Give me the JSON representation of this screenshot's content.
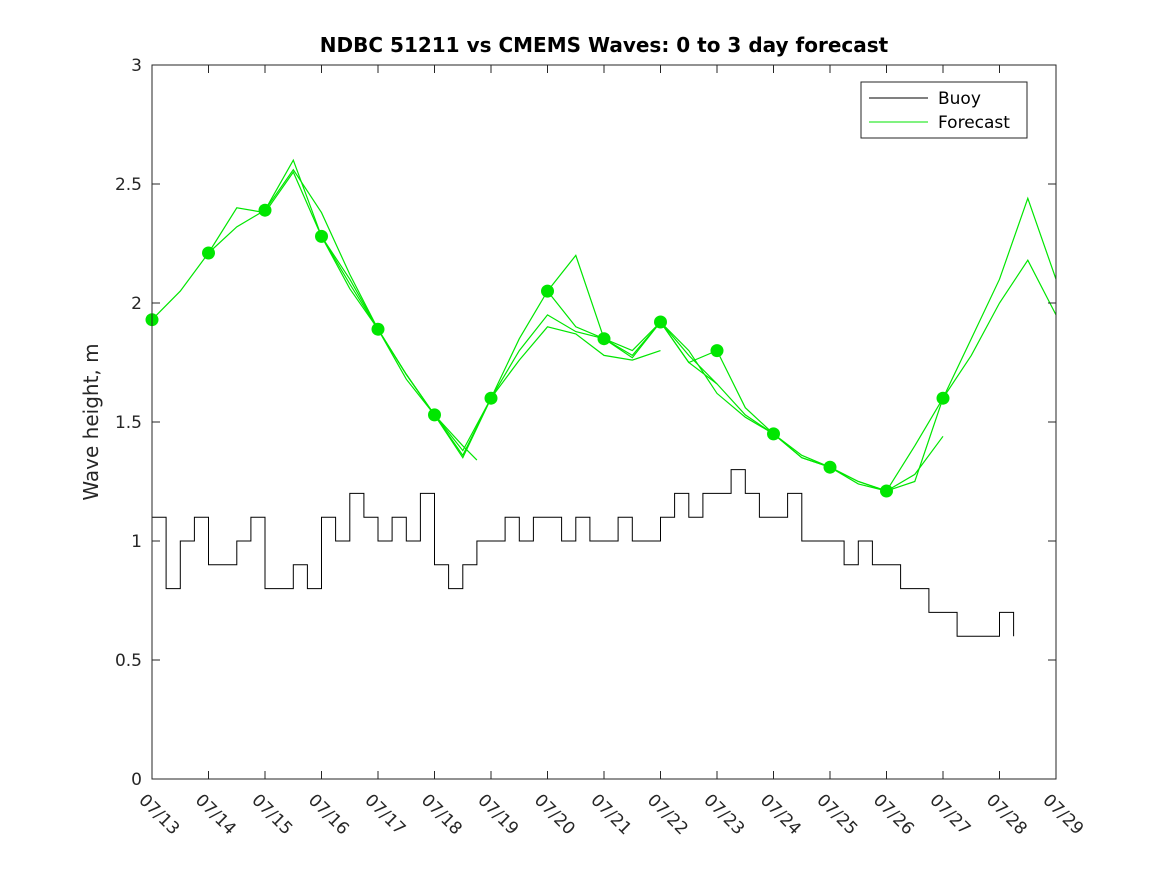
{
  "chart_data": {
    "type": "line",
    "title": "NDBC 51211 vs CMEMS Waves: 0 to 3 day forecast",
    "ylabel": "Wave height, m",
    "xlabel": "",
    "x_range": [
      "07/13",
      "07/29"
    ],
    "ylim": [
      0,
      3
    ],
    "yticks": [
      0,
      0.5,
      1,
      1.5,
      2,
      2.5,
      3
    ],
    "xtick_labels": [
      "07/13",
      "07/14",
      "07/15",
      "07/16",
      "07/17",
      "07/18",
      "07/19",
      "07/20",
      "07/21",
      "07/22",
      "07/23",
      "07/24",
      "07/25",
      "07/26",
      "07/27",
      "07/28",
      "07/29"
    ],
    "grid": false,
    "legend": {
      "placement": "top-right",
      "entries": [
        "Buoy",
        "Forecast"
      ]
    },
    "colors": {
      "buoy": "#000000",
      "forecast": "#00e600",
      "axis": "#262626"
    },
    "buoy": {
      "name": "Buoy",
      "x": [
        "07/13 00:00",
        "07/13 06:00",
        "07/13 12:00",
        "07/13 18:00",
        "07/14 00:00",
        "07/14 06:00",
        "07/14 12:00",
        "07/14 18:00",
        "07/15 00:00",
        "07/15 06:00",
        "07/15 12:00",
        "07/15 18:00",
        "07/16 00:00",
        "07/16 06:00",
        "07/16 12:00",
        "07/16 18:00",
        "07/17 00:00",
        "07/17 06:00",
        "07/17 12:00",
        "07/17 18:00",
        "07/18 00:00",
        "07/18 06:00",
        "07/18 12:00",
        "07/18 18:00",
        "07/19 00:00",
        "07/19 06:00",
        "07/19 12:00",
        "07/19 18:00",
        "07/20 00:00",
        "07/20 06:00",
        "07/20 12:00",
        "07/20 18:00",
        "07/21 00:00",
        "07/21 06:00",
        "07/21 12:00",
        "07/21 18:00",
        "07/22 00:00",
        "07/22 06:00",
        "07/22 12:00",
        "07/22 18:00",
        "07/23 00:00",
        "07/23 06:00",
        "07/23 12:00",
        "07/23 18:00",
        "07/24 00:00",
        "07/24 06:00",
        "07/24 12:00",
        "07/24 18:00",
        "07/25 00:00",
        "07/25 06:00",
        "07/25 12:00",
        "07/25 18:00",
        "07/26 00:00",
        "07/26 06:00",
        "07/26 12:00",
        "07/26 18:00",
        "07/27 00:00",
        "07/27 06:00",
        "07/27 12:00",
        "07/27 18:00",
        "07/28 00:00",
        "07/28 06:00"
      ],
      "y": [
        1.1,
        0.8,
        1.0,
        1.1,
        0.9,
        0.9,
        1.0,
        1.1,
        0.8,
        0.8,
        0.9,
        0.8,
        1.1,
        1.0,
        1.2,
        1.1,
        1.0,
        1.1,
        1.0,
        1.2,
        0.9,
        0.8,
        0.9,
        1.0,
        1.0,
        1.1,
        1.0,
        1.1,
        1.1,
        1.0,
        1.1,
        1.0,
        1.0,
        1.1,
        1.0,
        1.0,
        1.1,
        1.2,
        1.1,
        1.2,
        1.2,
        1.3,
        1.2,
        1.1,
        1.1,
        1.2,
        1.0,
        1.0,
        1.0,
        0.9,
        1.0,
        0.9,
        0.9,
        0.8,
        0.8,
        0.7,
        0.7,
        0.6,
        0.6,
        0.6,
        0.7,
        0.6
      ]
    },
    "series": [
      {
        "name": "Forecast",
        "x": [
          "07/13 00:00",
          "07/13 12:00",
          "07/14 00:00",
          "07/14 12:00",
          "07/15 00:00",
          "07/15 12:00",
          "07/16 00:00",
          "07/16 12:00",
          "07/17 00:00",
          "07/17 12:00",
          "07/18 00:00",
          "07/18 12:00",
          "07/18 18:00"
        ],
        "y": [
          1.93,
          2.05,
          2.21,
          2.4,
          2.38,
          2.55,
          2.28,
          2.1,
          1.89,
          1.7,
          1.53,
          1.4,
          1.34
        ]
      },
      {
        "name": "Forecast",
        "x": [
          "07/14 00:00",
          "07/14 12:00",
          "07/15 00:00",
          "07/15 12:00",
          "07/16 00:00",
          "07/16 12:00",
          "07/17 00:00",
          "07/17 12:00",
          "07/18 00:00",
          "07/18 12:00",
          "07/19 00:00",
          "07/19 12:00",
          "07/20 00:00",
          "07/20 12:00",
          "07/21 00:00",
          "07/21 12:00",
          "07/22 00:00"
        ],
        "y": [
          2.21,
          2.32,
          2.39,
          2.56,
          2.38,
          2.12,
          1.89,
          1.7,
          1.53,
          1.38,
          1.6,
          1.76,
          1.9,
          1.87,
          1.78,
          1.76,
          1.8
        ]
      },
      {
        "name": "Forecast",
        "x": [
          "07/15 00:00",
          "07/15 12:00",
          "07/16 00:00",
          "07/16 12:00",
          "07/17 00:00",
          "07/17 12:00",
          "07/18 00:00",
          "07/18 12:00",
          "07/19 00:00",
          "07/19 12:00",
          "07/20 00:00",
          "07/20 12:00",
          "07/21 00:00",
          "07/21 12:00",
          "07/22 00:00",
          "07/22 12:00",
          "07/23 00:00"
        ],
        "y": [
          2.39,
          2.6,
          2.28,
          2.08,
          1.89,
          1.68,
          1.53,
          1.36,
          1.6,
          1.85,
          2.05,
          2.2,
          1.85,
          1.8,
          1.92,
          1.75,
          1.66
        ]
      },
      {
        "name": "Forecast",
        "x": [
          "07/16 00:00",
          "07/16 12:00",
          "07/17 00:00",
          "07/17 12:00",
          "07/18 00:00",
          "07/18 12:00",
          "07/19 00:00",
          "07/19 12:00",
          "07/20 00:00",
          "07/20 12:00",
          "07/21 00:00",
          "07/21 12:00",
          "07/22 00:00",
          "07/22 12:00",
          "07/23 00:00",
          "07/23 12:00",
          "07/24 00:00"
        ],
        "y": [
          2.28,
          2.06,
          1.89,
          1.7,
          1.53,
          1.35,
          1.6,
          1.8,
          1.95,
          1.88,
          1.85,
          1.78,
          1.92,
          1.8,
          1.62,
          1.52,
          1.45
        ]
      },
      {
        "name": "Forecast",
        "x": [
          "07/20 00:00",
          "07/20 12:00",
          "07/21 00:00",
          "07/21 12:00",
          "07/22 00:00",
          "07/22 12:00",
          "07/23 00:00",
          "07/23 12:00",
          "07/24 00:00",
          "07/24 12:00",
          "07/25 00:00",
          "07/25 12:00",
          "07/26 00:00",
          "07/26 12:00",
          "07/27 00:00"
        ],
        "y": [
          2.05,
          1.9,
          1.85,
          1.77,
          1.92,
          1.78,
          1.66,
          1.53,
          1.45,
          1.35,
          1.31,
          1.25,
          1.21,
          1.28,
          1.44
        ]
      },
      {
        "name": "Forecast",
        "x": [
          "07/22 00:00",
          "07/22 12:00",
          "07/23 00:00",
          "07/23 12:00",
          "07/24 00:00",
          "07/24 12:00",
          "07/25 00:00",
          "07/25 12:00",
          "07/26 00:00",
          "07/26 12:00",
          "07/27 00:00",
          "07/27 12:00",
          "07/28 00:00",
          "07/28 12:00",
          "07/29 00:00"
        ],
        "y": [
          1.92,
          1.75,
          1.8,
          1.56,
          1.45,
          1.35,
          1.31,
          1.25,
          1.21,
          1.4,
          1.6,
          1.85,
          2.1,
          2.44,
          2.1
        ]
      },
      {
        "name": "Forecast",
        "x": [
          "07/24 00:00",
          "07/24 12:00",
          "07/25 00:00",
          "07/25 12:00",
          "07/26 00:00",
          "07/26 12:00",
          "07/27 00:00",
          "07/27 12:00",
          "07/28 00:00",
          "07/28 12:00",
          "07/29 00:00"
        ],
        "y": [
          1.45,
          1.36,
          1.31,
          1.24,
          1.21,
          1.25,
          1.6,
          1.78,
          2.0,
          2.18,
          1.95
        ]
      }
    ],
    "forecast_initial_points": {
      "x": [
        "07/13",
        "07/14",
        "07/15",
        "07/16",
        "07/17",
        "07/18",
        "07/19",
        "07/20",
        "07/21",
        "07/22",
        "07/23",
        "07/24",
        "07/25",
        "07/26",
        "07/27"
      ],
      "y": [
        1.93,
        2.21,
        2.39,
        2.28,
        1.89,
        1.53,
        1.6,
        2.05,
        1.85,
        1.92,
        1.8,
        1.45,
        1.31,
        1.21,
        1.6
      ]
    }
  }
}
